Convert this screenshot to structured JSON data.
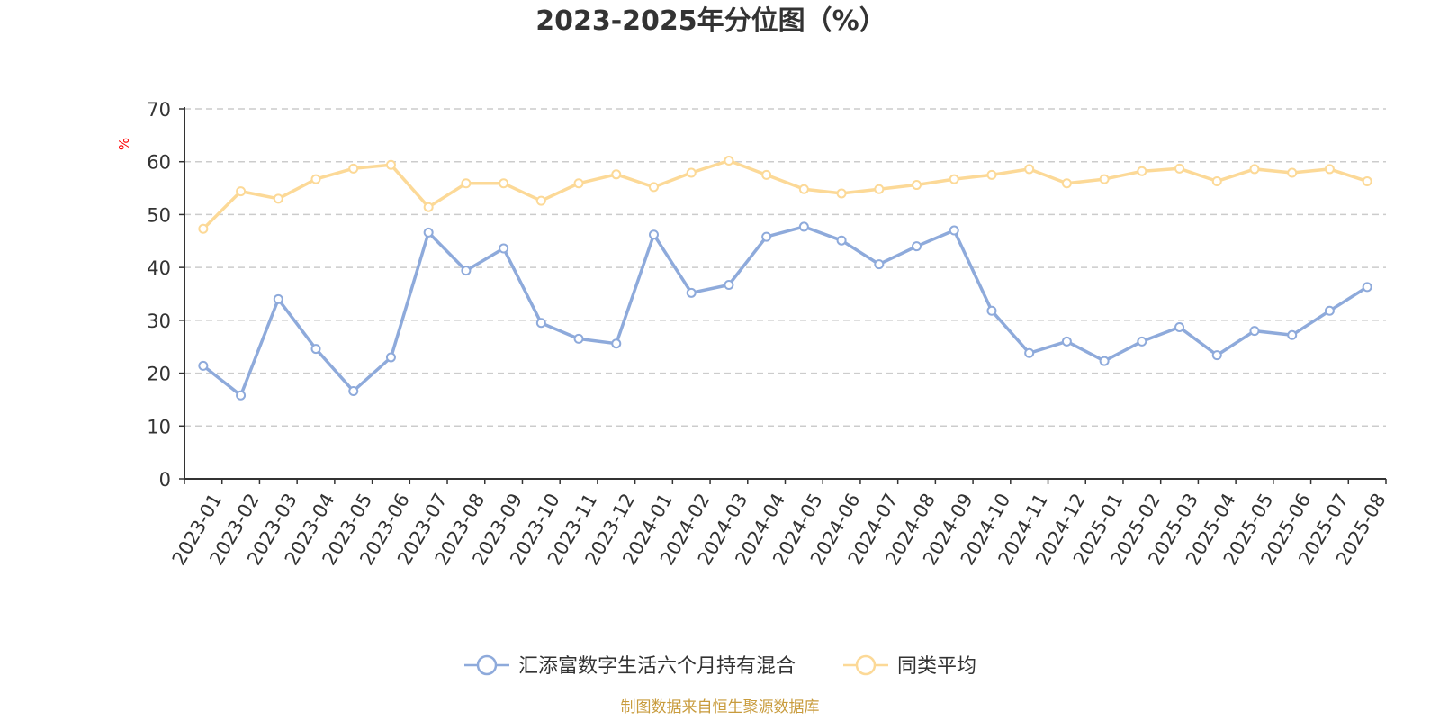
{
  "chart_data": {
    "type": "line",
    "title": "2023-2025年分位图（%）",
    "ylabel": "%",
    "ylim": [
      0,
      70
    ],
    "yticks": [
      "0",
      "10",
      "20",
      "30",
      "40",
      "50",
      "60",
      "70"
    ],
    "grid": true,
    "legend_position": "bottom",
    "categories": [
      "2023-01",
      "2023-02",
      "2023-03",
      "2023-04",
      "2023-05",
      "2023-06",
      "2023-07",
      "2023-08",
      "2023-09",
      "2023-10",
      "2023-11",
      "2023-12",
      "2024-01",
      "2024-02",
      "2024-03",
      "2024-04",
      "2024-05",
      "2024-06",
      "2024-07",
      "2024-08",
      "2024-09",
      "2024-10",
      "2024-11",
      "2024-12",
      "2025-01",
      "2025-02",
      "2025-03",
      "2025-04",
      "2025-05",
      "2025-06",
      "2025-07",
      "2025-08"
    ],
    "series": [
      {
        "name": "汇添富数字生活六个月持有混合",
        "color": "#8eaadb",
        "values": [
          21.4,
          15.8,
          34.0,
          24.6,
          16.6,
          23.0,
          46.6,
          39.4,
          43.6,
          29.5,
          26.5,
          25.6,
          46.2,
          35.2,
          36.7,
          45.8,
          47.7,
          45.1,
          40.6,
          44.0,
          47.0,
          31.8,
          23.8,
          26.0,
          22.3,
          26.0,
          28.7,
          23.4,
          28.0,
          27.2,
          31.8,
          36.3
        ]
      },
      {
        "name": "同类平均",
        "color": "#fcd997",
        "values": [
          47.3,
          54.4,
          53.0,
          56.7,
          58.7,
          59.4,
          51.4,
          55.9,
          55.9,
          52.6,
          55.9,
          57.6,
          55.2,
          57.9,
          60.2,
          57.5,
          54.8,
          54.0,
          54.8,
          55.6,
          56.7,
          57.5,
          58.6,
          55.9,
          56.7,
          58.2,
          58.7,
          56.3,
          58.6,
          57.9,
          58.6,
          56.3
        ]
      }
    ]
  },
  "source_note": "制图数据来自恒生聚源数据库",
  "colors": {
    "axis": "#333333",
    "grid": "#cccccc",
    "unit": "#ff0000",
    "source": "#c89b3c"
  }
}
